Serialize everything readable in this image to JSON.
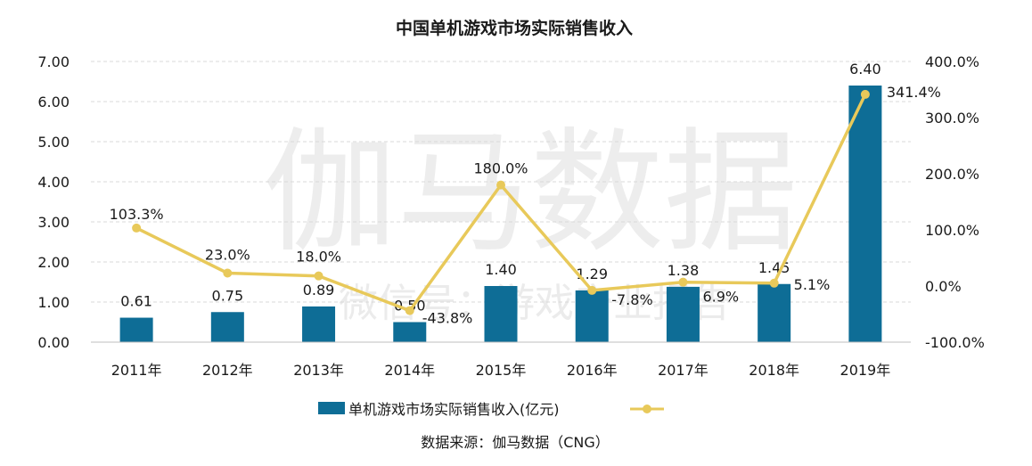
{
  "watermark": {
    "main": "伽马数据",
    "sub": "微信号：游戏产业报告"
  },
  "source": "数据来源：伽马数据（CNG）",
  "colors": {
    "bar": "#0e6d96",
    "line": "#e8c95a",
    "grid": "#d9d9d9"
  },
  "chart_data": {
    "type": "bar",
    "title": "中国单机游戏市场实际销售收入",
    "categories": [
      "2011年",
      "2012年",
      "2013年",
      "2014年",
      "2015年",
      "2016年",
      "2017年",
      "2018年",
      "2019年"
    ],
    "series": [
      {
        "name": "单机游戏市场实际销售收入(亿元)",
        "type": "bar",
        "axis": "left",
        "values": [
          0.61,
          0.75,
          0.89,
          0.5,
          1.4,
          1.29,
          1.38,
          1.45,
          6.4
        ],
        "labels": [
          "0.61",
          "0.75",
          "0.89",
          "0.50",
          "1.40",
          "1.29",
          "1.38",
          "1.45",
          "6.40"
        ]
      },
      {
        "name": "",
        "type": "line",
        "axis": "right",
        "values": [
          103.3,
          23.0,
          18.0,
          -43.8,
          180.0,
          -7.8,
          6.9,
          5.1,
          341.4
        ],
        "labels": [
          "103.3%",
          "23.0%",
          "18.0%",
          "-43.8%",
          "180.0%",
          "-7.8%",
          "6.9%",
          "5.1%",
          "341.4%"
        ]
      }
    ],
    "y_left": {
      "range": [
        0,
        7
      ],
      "ticks": [
        "0.00",
        "1.00",
        "2.00",
        "3.00",
        "4.00",
        "5.00",
        "6.00",
        "7.00"
      ]
    },
    "y_right": {
      "range": [
        -100,
        400
      ],
      "ticks": [
        "-100.0%",
        "0.0%",
        "100.0%",
        "200.0%",
        "300.0%",
        "400.0%"
      ]
    },
    "grid": true,
    "legend": "bottom"
  }
}
